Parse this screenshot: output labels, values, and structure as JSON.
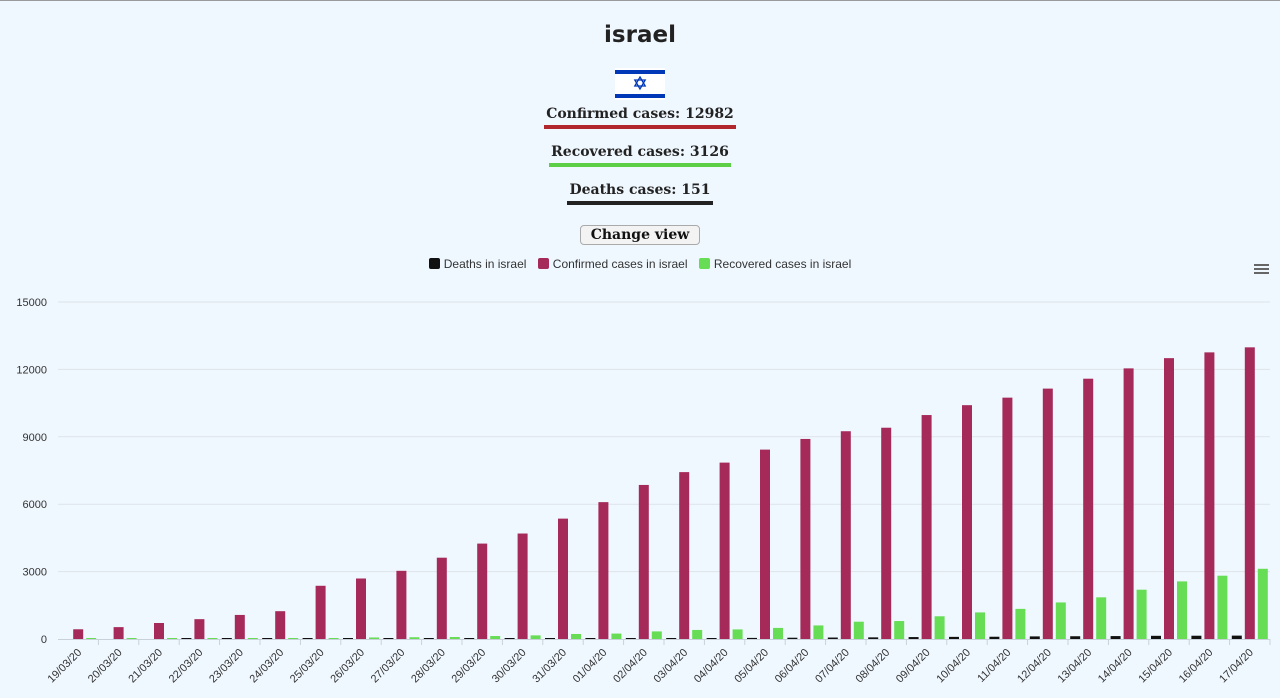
{
  "header": {
    "country": "israel",
    "confirmed_label": "Confirmed cases: 12982",
    "recovered_label": "Recovered cases: 3126",
    "deaths_label": "Deaths cases: 151",
    "change_view_label": "Change view",
    "flag_icon": "israel-flag-icon",
    "menu_icon": "hamburger-menu-icon"
  },
  "colors": {
    "deaths": "#111111",
    "confirmed": "#a52a5a",
    "recovered": "#66dd55",
    "confirmed_underline": "#b2272d",
    "recovered_underline": "#5ccf46",
    "deaths_underline": "#222222"
  },
  "legend": [
    {
      "name": "Deaths in israel",
      "color": "#111111"
    },
    {
      "name": "Confirmed cases in israel",
      "color": "#a52a5a"
    },
    {
      "name": "Recovered cases in israel",
      "color": "#66dd55"
    }
  ],
  "chart_data": {
    "type": "bar",
    "title": "",
    "xlabel": "",
    "ylabel": "",
    "ylim": [
      0,
      15000
    ],
    "yticks": [
      0,
      3000,
      6000,
      9000,
      12000,
      15000
    ],
    "grid": true,
    "legend_position": "top-center",
    "categories": [
      "19/03/20",
      "20/03/20",
      "21/03/20",
      "22/03/20",
      "23/03/20",
      "24/03/20",
      "25/03/20",
      "26/03/20",
      "27/03/20",
      "28/03/20",
      "29/03/20",
      "30/03/20",
      "31/03/20",
      "01/04/20",
      "02/04/20",
      "03/04/20",
      "04/04/20",
      "05/04/20",
      "06/04/20",
      "07/04/20",
      "08/04/20",
      "09/04/20",
      "10/04/20",
      "11/04/20",
      "12/04/20",
      "13/04/20",
      "14/04/20",
      "15/04/20",
      "16/04/20",
      "17/04/20"
    ],
    "series": [
      {
        "name": "Deaths in israel",
        "color": "#111111",
        "values": [
          0,
          0,
          0,
          1,
          1,
          1,
          3,
          5,
          8,
          12,
          15,
          16,
          20,
          21,
          33,
          36,
          40,
          49,
          57,
          65,
          73,
          86,
          95,
          101,
          116,
          123,
          130,
          142,
          146,
          151
        ]
      },
      {
        "name": "Confirmed cases in israel",
        "color": "#a52a5a",
        "values": [
          433,
          529,
          712,
          883,
          1071,
          1238,
          2369,
          2693,
          3035,
          3619,
          4247,
          4695,
          5358,
          6092,
          6857,
          7428,
          7851,
          8430,
          8904,
          9248,
          9404,
          9968,
          10408,
          10743,
          11145,
          11586,
          12046,
          12501,
          12758,
          12982
        ]
      },
      {
        "name": "Recovered cases in israel",
        "color": "#66dd55",
        "values": [
          11,
          11,
          14,
          15,
          37,
          37,
          41,
          68,
          79,
          89,
          132,
          161,
          224,
          241,
          338,
          403,
          427,
          494,
          604,
          770,
          800,
          1011,
          1183,
          1341,
          1627,
          1855,
          2195,
          2564,
          2818,
          3126
        ]
      }
    ]
  }
}
